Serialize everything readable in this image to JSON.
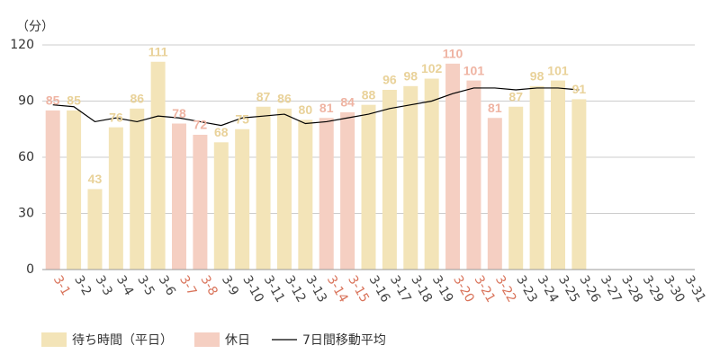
{
  "chart_data": {
    "type": "bar",
    "unit_label": "（分）",
    "categories": [
      "3-1",
      "3-2",
      "3-3",
      "3-4",
      "3-5",
      "3-6",
      "3-7",
      "3-8",
      "3-9",
      "3-10",
      "3-11",
      "3-12",
      "3-13",
      "3-14",
      "3-15",
      "3-16",
      "3-17",
      "3-18",
      "3-19",
      "3-20",
      "3-21",
      "3-22",
      "3-23",
      "3-24",
      "3-25",
      "3-26",
      "3-27",
      "3-28",
      "3-29",
      "3-30",
      "3-31"
    ],
    "series": [
      {
        "name": "待ち時間（平日）",
        "type": "bar",
        "color": "#f3e4b8",
        "label_color": "#e9d29a",
        "values": [
          null,
          85,
          43,
          76,
          86,
          111,
          null,
          null,
          68,
          75,
          87,
          86,
          80,
          null,
          null,
          88,
          96,
          98,
          102,
          null,
          null,
          null,
          87,
          98,
          101,
          91,
          null,
          null,
          null,
          null,
          null
        ]
      },
      {
        "name": "休日",
        "type": "bar",
        "color": "#f5cfc2",
        "label_color": "#efb4a3",
        "tick_color": "#d9735a",
        "values": [
          85,
          null,
          null,
          null,
          null,
          null,
          78,
          72,
          null,
          null,
          null,
          null,
          null,
          81,
          84,
          null,
          null,
          null,
          null,
          110,
          101,
          81,
          null,
          null,
          null,
          null,
          null,
          null,
          null,
          null,
          null
        ]
      },
      {
        "name": "7日間移動平均",
        "type": "line",
        "color": "#000000",
        "values": [
          88,
          87,
          79,
          81,
          79,
          82,
          81,
          79,
          77,
          81,
          82,
          83,
          78,
          79,
          81,
          83,
          86,
          88,
          90,
          94,
          97,
          97,
          96,
          97,
          97,
          96,
          null,
          null,
          null,
          null,
          null
        ]
      }
    ],
    "ylim": [
      0,
      120
    ],
    "yticks": [
      0,
      30,
      60,
      90,
      120
    ],
    "grid": true
  }
}
